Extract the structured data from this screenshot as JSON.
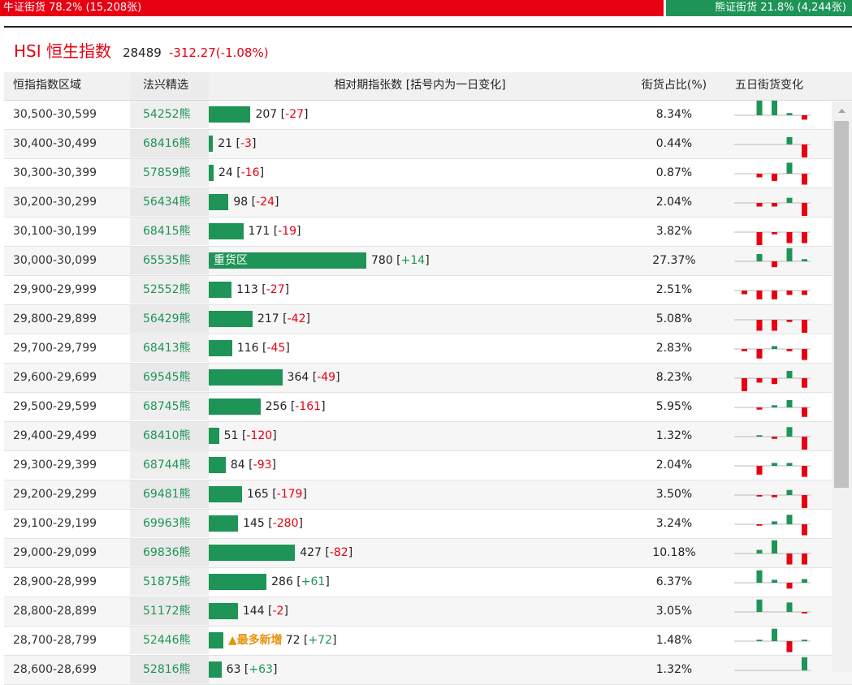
{
  "ratio_bar": {
    "bull_label": "牛证街货 78.2% (15,208张)",
    "bull_fraction": 0.782,
    "bear_label": "熊证街货 21.8% (4,244张)",
    "bull_color": "#e60012",
    "bear_color": "#1e9456"
  },
  "index": {
    "name": "HSI 恒生指数",
    "price": "28489",
    "change": "-312.27(-1.08%)"
  },
  "table": {
    "headers": {
      "range": "恒指指数区域",
      "warrant": "法兴精选",
      "relative": "相对期指张数 [括号内为一日变化]",
      "share": "街货占比(%)",
      "five_day": "五日街货变化"
    },
    "bar_max": 780,
    "rows": [
      {
        "range": "30,500-30,599",
        "code": "54252熊",
        "count": 207,
        "count_text": "207",
        "change": "-27",
        "share": "8.34%",
        "five": [
          0,
          2,
          2,
          0.3,
          -0.6
        ]
      },
      {
        "range": "30,400-30,499",
        "code": "68416熊",
        "count": 21,
        "count_text": "21",
        "change": "-3",
        "share": "0.44%",
        "five": [
          0,
          0,
          0,
          1,
          -2
        ]
      },
      {
        "range": "30,300-30,399",
        "code": "57859熊",
        "count": 24,
        "count_text": "24",
        "change": "-16",
        "share": "0.87%",
        "five": [
          0,
          -0.5,
          -1,
          1.5,
          -1.5
        ]
      },
      {
        "range": "30,200-30,299",
        "code": "56434熊",
        "count": 98,
        "count_text": "98",
        "change": "-24",
        "share": "2.04%",
        "five": [
          0,
          -0.5,
          -0.5,
          0.7,
          -2
        ]
      },
      {
        "range": "30,100-30,199",
        "code": "68415熊",
        "count": 171,
        "count_text": "171",
        "change": "-19",
        "share": "3.82%",
        "five": [
          0,
          -1.8,
          -0.3,
          -1.5,
          -1.5
        ]
      },
      {
        "range": "30,000-30,099",
        "code": "65535熊",
        "count": 780,
        "count_text": "780",
        "change": "+14",
        "share": "27.37%",
        "label": "重货区",
        "five": [
          0,
          1,
          -0.8,
          1.8,
          0.3
        ]
      },
      {
        "range": "29,900-29,999",
        "code": "52552熊",
        "count": 113,
        "count_text": "113",
        "change": "-27",
        "share": "2.51%",
        "five": [
          -0.5,
          -1.2,
          -1.2,
          -0.6,
          -0.6
        ]
      },
      {
        "range": "29,800-29,899",
        "code": "56429熊",
        "count": 217,
        "count_text": "217",
        "change": "-42",
        "share": "5.08%",
        "five": [
          0,
          -1.5,
          -1.5,
          -0.3,
          -1.8
        ]
      },
      {
        "range": "29,700-29,799",
        "code": "68413熊",
        "count": 116,
        "count_text": "116",
        "change": "-45",
        "share": "2.83%",
        "five": [
          -0.3,
          -1.3,
          0.4,
          -0.3,
          -1.5
        ]
      },
      {
        "range": "29,600-29,699",
        "code": "69545熊",
        "count": 364,
        "count_text": "364",
        "change": "-49",
        "share": "8.23%",
        "five": [
          -1.8,
          -0.6,
          -0.8,
          1,
          -1.3
        ]
      },
      {
        "range": "29,500-29,599",
        "code": "68745熊",
        "count": 256,
        "count_text": "256",
        "change": "-161",
        "share": "5.95%",
        "five": [
          0,
          -0.3,
          0.3,
          1,
          -1.3
        ]
      },
      {
        "range": "29,400-29,499",
        "code": "68410熊",
        "count": 51,
        "count_text": "51",
        "change": "-120",
        "share": "1.32%",
        "five": [
          0,
          0.2,
          -0.3,
          1.3,
          -1.8
        ]
      },
      {
        "range": "29,300-29,399",
        "code": "68744熊",
        "count": 84,
        "count_text": "84",
        "change": "-93",
        "share": "2.04%",
        "five": [
          0,
          -1.2,
          0.4,
          0.4,
          -1.5
        ]
      },
      {
        "range": "29,200-29,299",
        "code": "69481熊",
        "count": 165,
        "count_text": "165",
        "change": "-179",
        "share": "3.50%",
        "five": [
          0,
          -0.2,
          -0.3,
          0.7,
          -1.8
        ]
      },
      {
        "range": "29,100-29,199",
        "code": "69963熊",
        "count": 145,
        "count_text": "145",
        "change": "-280",
        "share": "3.24%",
        "five": [
          0,
          -0.2,
          0.4,
          1.3,
          -1.5
        ]
      },
      {
        "range": "29,000-29,099",
        "code": "69836熊",
        "count": 427,
        "count_text": "427",
        "change": "-82",
        "share": "10.18%",
        "five": [
          0,
          0.5,
          1.8,
          -1.5,
          -1.5
        ]
      },
      {
        "range": "28,900-28,999",
        "code": "51875熊",
        "count": 286,
        "count_text": "286",
        "change": "+61",
        "share": "6.37%",
        "five": [
          0,
          1.7,
          0.4,
          -0.8,
          0.5
        ]
      },
      {
        "range": "28,800-28,899",
        "code": "51172熊",
        "count": 144,
        "count_text": "144",
        "change": "-2",
        "share": "3.05%",
        "five": [
          0,
          1.7,
          0,
          1.3,
          -0.2
        ]
      },
      {
        "range": "28,700-28,799",
        "code": "52446熊",
        "count": 72,
        "count_text": "72",
        "change": "+72",
        "share": "1.48%",
        "tag": "▲最多新增",
        "five": [
          0,
          0.2,
          1.7,
          -1.5,
          0.2
        ]
      },
      {
        "range": "28,600-28,699",
        "code": "52816熊",
        "count": 63,
        "count_text": "63",
        "change": "+63",
        "share": "1.32%",
        "five": [
          0,
          0,
          0,
          0,
          1.8
        ]
      }
    ]
  }
}
